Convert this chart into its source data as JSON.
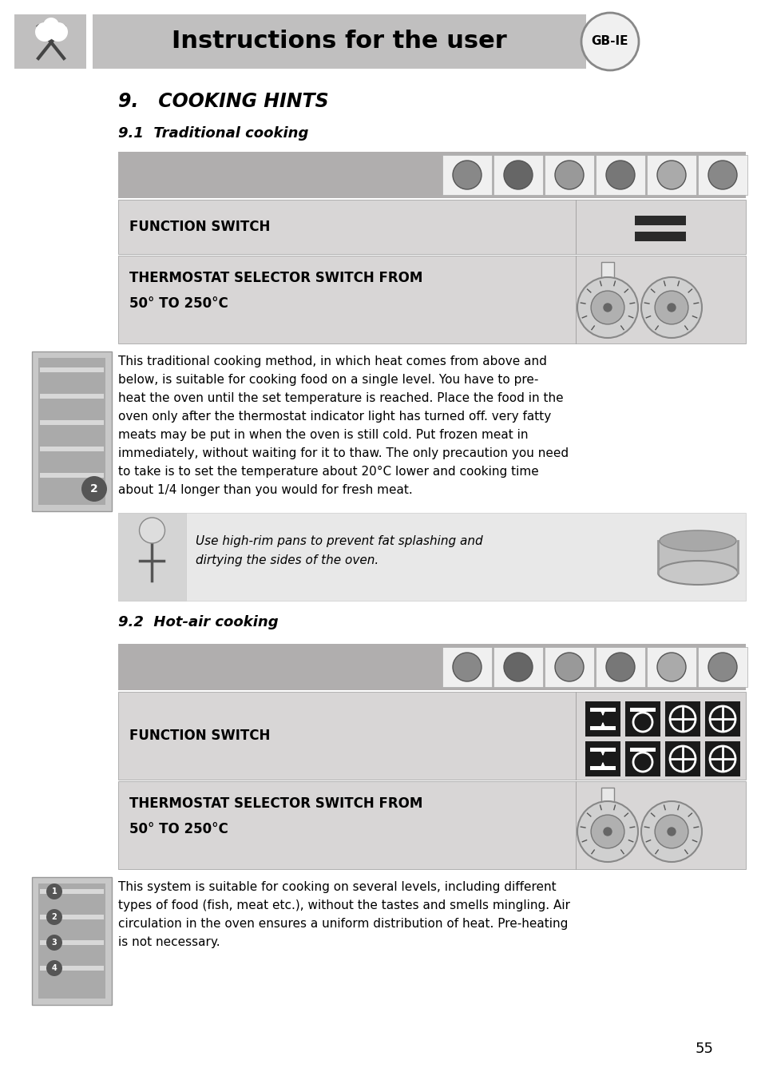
{
  "page_bg": "#ffffff",
  "header_bg": "#c0bfbf",
  "header_text": "Instructions for the user",
  "header_text_color": "#000000",
  "gbid_text": "GB-IE",
  "section_title": "9.   COOKING HINTS",
  "subsection1_title": "9.1  Traditional cooking",
  "subsection2_title": "9.2  Hot-air cooking",
  "func_switch_label": "FUNCTION SWITCH",
  "thermo_label_line1": "THERMOSTAT SELECTOR SWITCH FROM",
  "thermo_label_line2": "50° TO 250°C",
  "row_bg_dark": "#b0aeae",
  "row_bg_light": "#d8d6d6",
  "para1_line1": "This traditional cooking method, in which heat comes from above and",
  "para1_line2": "below, is suitable for cooking food on a single level. You have to pre-",
  "para1_line3": "heat the oven until the set temperature is reached. Place the food in the",
  "para1_line4": "oven only after the thermostat indicator light has turned off. very fatty",
  "para1_line5": "meats may be put in when the oven is still cold. Put frozen meat in",
  "para1_line6": "immediately, without waiting for it to thaw. The only precaution you need",
  "para1_line7": "to take is to set the temperature about 20°C lower and cooking time",
  "para1_line8": "about 1/4 longer than you would for fresh meat.",
  "tip_line1": "Use high-rim pans to prevent fat splashing and",
  "tip_line2": "dirtying the sides of the oven.",
  "para2_line1": "This system is suitable for cooking on several levels, including different",
  "para2_line2": "types of food (fish, meat etc.), without the tastes and smells mingling. Air",
  "para2_line3": "circulation in the oven ensures a uniform distribution of heat. Pre-heating",
  "para2_line4": "is not necessary.",
  "page_number": "55"
}
